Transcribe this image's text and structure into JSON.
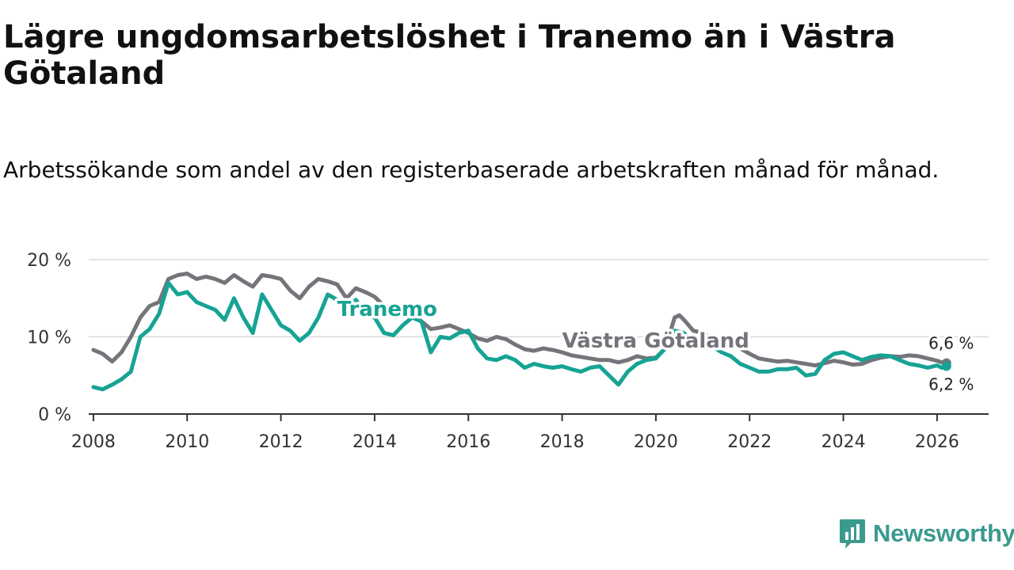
{
  "title": "Lägre ungdomsarbetslöshet i Tranemo än i Västra Götaland",
  "subtitle": "Arbetssökande som andel av den registerbaserade arbetskraften månad för månad.",
  "brand": {
    "name": "Newsworthy",
    "color": "#3a9a8e",
    "icon": "bar-chart-icon"
  },
  "colors": {
    "tranemo": "#16a394",
    "vg": "#75747a",
    "grid": "#d9d9d9",
    "axis": "#333333"
  },
  "chart_data": {
    "type": "line",
    "title": "Lägre ungdomsarbetslöshet i Tranemo än i Västra Götaland",
    "ylabel": "",
    "xlabel": "",
    "xlim": [
      2007.9,
      2027.1
    ],
    "ylim": [
      0,
      20
    ],
    "x_ticks": [
      {
        "value": 2008,
        "label": "2008"
      },
      {
        "value": 2010,
        "label": "2010"
      },
      {
        "value": 2012,
        "label": "2012"
      },
      {
        "value": 2014,
        "label": "2014"
      },
      {
        "value": 2016,
        "label": "2016"
      },
      {
        "value": 2018,
        "label": "2018"
      },
      {
        "value": 2020,
        "label": "2020"
      },
      {
        "value": 2022,
        "label": "2022"
      },
      {
        "value": 2024,
        "label": "2024"
      },
      {
        "value": 2026,
        "label": "2026"
      }
    ],
    "y_ticks": [
      {
        "value": 0,
        "label": "0 %"
      },
      {
        "value": 10,
        "label": "10 %"
      },
      {
        "value": 20,
        "label": "20 %"
      }
    ],
    "grid": true,
    "series": [
      {
        "name": "Västra Götaland",
        "color": "#75747a",
        "label_at": [
          2018.0,
          8.6
        ],
        "end_label": "6,6 %",
        "x": [
          2008.0,
          2008.2,
          2008.4,
          2008.6,
          2008.8,
          2009.0,
          2009.2,
          2009.4,
          2009.6,
          2009.8,
          2010.0,
          2010.2,
          2010.4,
          2010.6,
          2010.8,
          2011.0,
          2011.2,
          2011.4,
          2011.6,
          2011.8,
          2012.0,
          2012.2,
          2012.4,
          2012.6,
          2012.8,
          2013.0,
          2013.2,
          2013.4,
          2013.6,
          2013.8,
          2014.0,
          2014.2,
          2014.4,
          2014.6,
          2014.8,
          2015.0,
          2015.2,
          2015.4,
          2015.6,
          2015.8,
          2016.0,
          2016.2,
          2016.4,
          2016.6,
          2016.8,
          2017.0,
          2017.2,
          2017.4,
          2017.6,
          2017.8,
          2018.0,
          2018.2,
          2018.4,
          2018.6,
          2018.8,
          2019.0,
          2019.2,
          2019.4,
          2019.6,
          2019.8,
          2020.0,
          2020.2,
          2020.4,
          2020.5,
          2020.6,
          2020.8,
          2021.0,
          2021.2,
          2021.4,
          2021.6,
          2021.8,
          2022.0,
          2022.2,
          2022.4,
          2022.6,
          2022.8,
          2023.0,
          2023.2,
          2023.4,
          2023.6,
          2023.8,
          2024.0,
          2024.2,
          2024.4,
          2024.6,
          2024.8,
          2025.0,
          2025.2,
          2025.4,
          2025.6,
          2025.8,
          2026.0,
          2026.1,
          2026.2
        ],
        "values": [
          8.3,
          7.8,
          6.8,
          8.0,
          10.0,
          12.5,
          14.0,
          14.5,
          17.5,
          18.0,
          18.2,
          17.5,
          17.8,
          17.5,
          17.0,
          18.0,
          17.2,
          16.5,
          18.0,
          17.8,
          17.5,
          16.0,
          15.0,
          16.5,
          17.5,
          17.2,
          16.8,
          15.0,
          16.3,
          15.8,
          15.2,
          14.0,
          13.5,
          13.8,
          13.0,
          12.0,
          11.0,
          11.2,
          11.5,
          11.0,
          10.5,
          9.8,
          9.5,
          10.0,
          9.7,
          9.0,
          8.4,
          8.2,
          8.5,
          8.3,
          8.0,
          7.6,
          7.4,
          7.2,
          7.0,
          7.0,
          6.7,
          7.0,
          7.5,
          7.2,
          7.3,
          8.5,
          12.5,
          12.8,
          12.2,
          10.8,
          10.5,
          9.8,
          9.5,
          9.0,
          8.5,
          7.8,
          7.2,
          7.0,
          6.8,
          6.9,
          6.7,
          6.5,
          6.3,
          6.6,
          6.9,
          6.7,
          6.4,
          6.5,
          7.0,
          7.3,
          7.5,
          7.4,
          7.6,
          7.5,
          7.2,
          6.9,
          6.7,
          6.6
        ]
      },
      {
        "name": "Tranemo",
        "color": "#16a394",
        "label_at": [
          2013.2,
          12.7
        ],
        "end_label": "6,2 %",
        "x": [
          2008.0,
          2008.2,
          2008.4,
          2008.6,
          2008.8,
          2009.0,
          2009.2,
          2009.4,
          2009.6,
          2009.8,
          2010.0,
          2010.2,
          2010.4,
          2010.6,
          2010.8,
          2011.0,
          2011.2,
          2011.4,
          2011.6,
          2011.8,
          2012.0,
          2012.2,
          2012.4,
          2012.6,
          2012.8,
          2013.0,
          2013.2,
          2013.4,
          2013.6,
          2013.8,
          2014.0,
          2014.2,
          2014.4,
          2014.6,
          2014.8,
          2015.0,
          2015.2,
          2015.4,
          2015.6,
          2015.8,
          2016.0,
          2016.2,
          2016.4,
          2016.6,
          2016.8,
          2017.0,
          2017.2,
          2017.4,
          2017.6,
          2017.8,
          2018.0,
          2018.2,
          2018.4,
          2018.6,
          2018.8,
          2019.0,
          2019.2,
          2019.4,
          2019.6,
          2019.8,
          2020.0,
          2020.2,
          2020.4,
          2020.6,
          2020.8,
          2021.0,
          2021.2,
          2021.4,
          2021.6,
          2021.8,
          2022.0,
          2022.2,
          2022.4,
          2022.6,
          2022.8,
          2023.0,
          2023.2,
          2023.4,
          2023.6,
          2023.8,
          2024.0,
          2024.2,
          2024.4,
          2024.6,
          2024.8,
          2025.0,
          2025.2,
          2025.4,
          2025.6,
          2025.8,
          2026.0,
          2026.1,
          2026.2
        ],
        "values": [
          3.5,
          3.2,
          3.8,
          4.5,
          5.5,
          10.0,
          11.0,
          13.0,
          17.0,
          15.5,
          15.8,
          14.5,
          14.0,
          13.5,
          12.2,
          15.0,
          12.5,
          10.5,
          15.5,
          13.5,
          11.5,
          10.8,
          9.5,
          10.5,
          12.5,
          15.5,
          14.8,
          14.0,
          14.8,
          13.0,
          12.5,
          10.5,
          10.2,
          11.5,
          12.5,
          12.0,
          8.0,
          10.0,
          9.8,
          10.5,
          10.8,
          8.5,
          7.2,
          7.0,
          7.5,
          7.0,
          6.0,
          6.5,
          6.2,
          6.0,
          6.2,
          5.8,
          5.5,
          6.0,
          6.2,
          5.0,
          3.8,
          5.5,
          6.5,
          7.0,
          7.2,
          8.5,
          10.8,
          10.5,
          9.0,
          8.5,
          8.8,
          8.0,
          7.5,
          6.5,
          6.0,
          5.5,
          5.5,
          5.8,
          5.8,
          6.0,
          5.0,
          5.2,
          7.0,
          7.8,
          8.0,
          7.5,
          7.0,
          7.4,
          7.6,
          7.5,
          7.0,
          6.5,
          6.3,
          6.0,
          6.3,
          6.0,
          6.2
        ]
      }
    ]
  }
}
